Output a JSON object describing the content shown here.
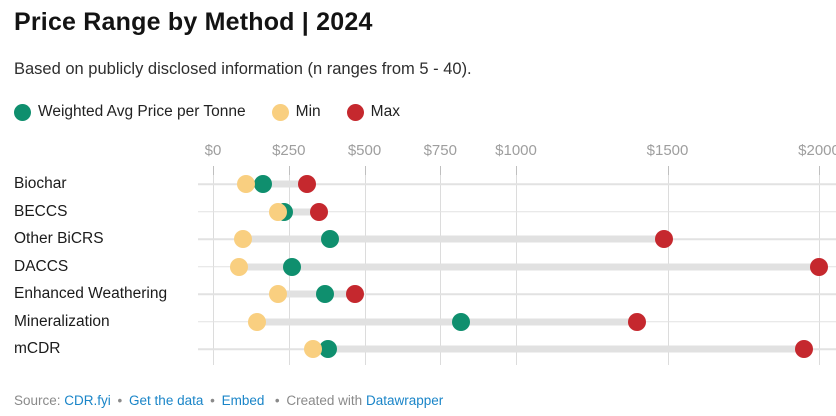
{
  "header": {
    "title": "Price Range by Method | 2024",
    "subtitle": "Based on publicly disclosed information (n ranges from 5 - 40)."
  },
  "legend": [
    {
      "key": "avg",
      "label": "Weighted Avg Price per Tonne",
      "color": "#0f8f6e"
    },
    {
      "key": "min",
      "label": "Min",
      "color": "#f9cf80"
    },
    {
      "key": "max",
      "label": "Max",
      "color": "#c5282e"
    }
  ],
  "colors": {
    "avg": "#0f8f6e",
    "min": "#f9cf80",
    "max": "#c5282e",
    "gridline": "#dcdcdc",
    "range_bar": "#e1e1e1",
    "axis_text": "#9e9e9e",
    "link": "#1a85c8"
  },
  "chart_data": {
    "type": "dot-range",
    "title": "Price Range by Method | 2024",
    "subtitle": "Based on publicly disclosed information (n ranges from 5 - 40).",
    "unit": "USD per tonne",
    "grid": true,
    "legend_position": "top",
    "x_axis": {
      "range": [
        0,
        2050
      ],
      "ticks": [
        {
          "label": "$0",
          "value": 0
        },
        {
          "label": "$250",
          "value": 250
        },
        {
          "label": "$500",
          "value": 500
        },
        {
          "label": "$750",
          "value": 750
        },
        {
          "label": "$1000",
          "value": 1000
        },
        {
          "label": "$1500",
          "value": 1500
        },
        {
          "label": "$2000",
          "value": 2000
        }
      ]
    },
    "categories": [
      "Biochar",
      "BECCS",
      "Other BiCRS",
      "DACCS",
      "Enhanced Weathering",
      "Mineralization",
      "mCDR"
    ],
    "series": [
      {
        "name": "Min",
        "key": "min",
        "values": [
          110,
          215,
          100,
          85,
          215,
          145,
          330
        ]
      },
      {
        "name": "Weighted Avg Price per Tonne",
        "key": "avg",
        "values": [
          165,
          235,
          385,
          260,
          370,
          820,
          380
        ]
      },
      {
        "name": "Max",
        "key": "max",
        "values": [
          310,
          350,
          1490,
          2000,
          470,
          1400,
          1950
        ]
      }
    ]
  },
  "footer": {
    "source_label": "Source:",
    "source_link": "CDR.fyi",
    "get_data_link": "Get the data",
    "embed_link": "Embed",
    "created_with": "Created with",
    "tool_link": "Datawrapper",
    "bullet": "•"
  }
}
